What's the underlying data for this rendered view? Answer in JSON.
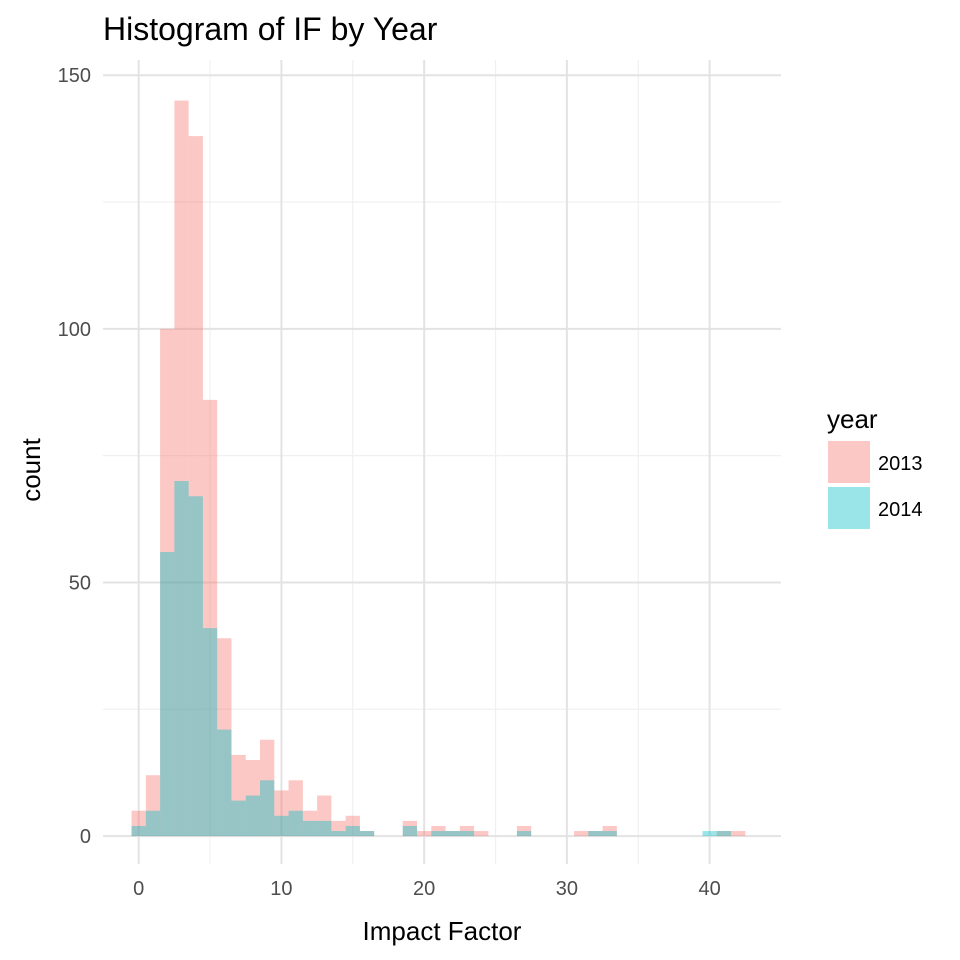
{
  "chart_data": {
    "type": "bar",
    "title": "Histogram of IF by Year",
    "xlabel": "Impact Factor",
    "ylabel": "count",
    "xlim": [
      -2.5,
      45
    ],
    "ylim": [
      -5.5,
      153
    ],
    "x_major_ticks": [
      0,
      10,
      20,
      30,
      40
    ],
    "x_minor_ticks": [
      5,
      15,
      25,
      35
    ],
    "y_major_ticks": [
      0,
      50,
      100,
      150
    ],
    "y_minor_ticks": [
      25,
      75,
      125
    ],
    "grid": true,
    "legend": {
      "title": "year",
      "position": "right"
    },
    "bin_width": 1.0,
    "bin_starts": [
      -0.5,
      0.5,
      1.5,
      2.5,
      3.5,
      4.5,
      5.5,
      6.5,
      7.5,
      8.5,
      9.5,
      10.5,
      11.5,
      12.5,
      13.5,
      14.5,
      15.5,
      16.5,
      17.5,
      18.5,
      19.5,
      20.5,
      21.5,
      22.5,
      23.5,
      24.5,
      25.5,
      26.5,
      27.5,
      28.5,
      29.5,
      30.5,
      31.5,
      32.5,
      33.5,
      34.5,
      35.5,
      36.5,
      37.5,
      38.5,
      39.5,
      40.5,
      41.5
    ],
    "series": [
      {
        "name": "2013",
        "color": "#F8766D",
        "values": [
          5,
          12,
          100,
          145,
          138,
          86,
          39,
          16,
          15,
          19,
          9,
          11,
          5,
          8,
          3,
          4,
          1,
          0,
          0,
          3,
          1,
          2,
          1,
          2,
          1,
          0,
          0,
          2,
          0,
          0,
          0,
          1,
          1,
          2,
          0,
          0,
          0,
          0,
          0,
          0,
          0,
          1,
          1
        ]
      },
      {
        "name": "2014",
        "color": "#00BFC4",
        "values": [
          2,
          5,
          56,
          70,
          67,
          41,
          21,
          7,
          8,
          11,
          4,
          5,
          3,
          3,
          1,
          2,
          1,
          0,
          0,
          2,
          0,
          1,
          1,
          1,
          0,
          0,
          0,
          1,
          0,
          0,
          0,
          0,
          1,
          1,
          0,
          0,
          0,
          0,
          0,
          0,
          1,
          1,
          0
        ]
      }
    ],
    "fill_opacity": 0.4
  }
}
